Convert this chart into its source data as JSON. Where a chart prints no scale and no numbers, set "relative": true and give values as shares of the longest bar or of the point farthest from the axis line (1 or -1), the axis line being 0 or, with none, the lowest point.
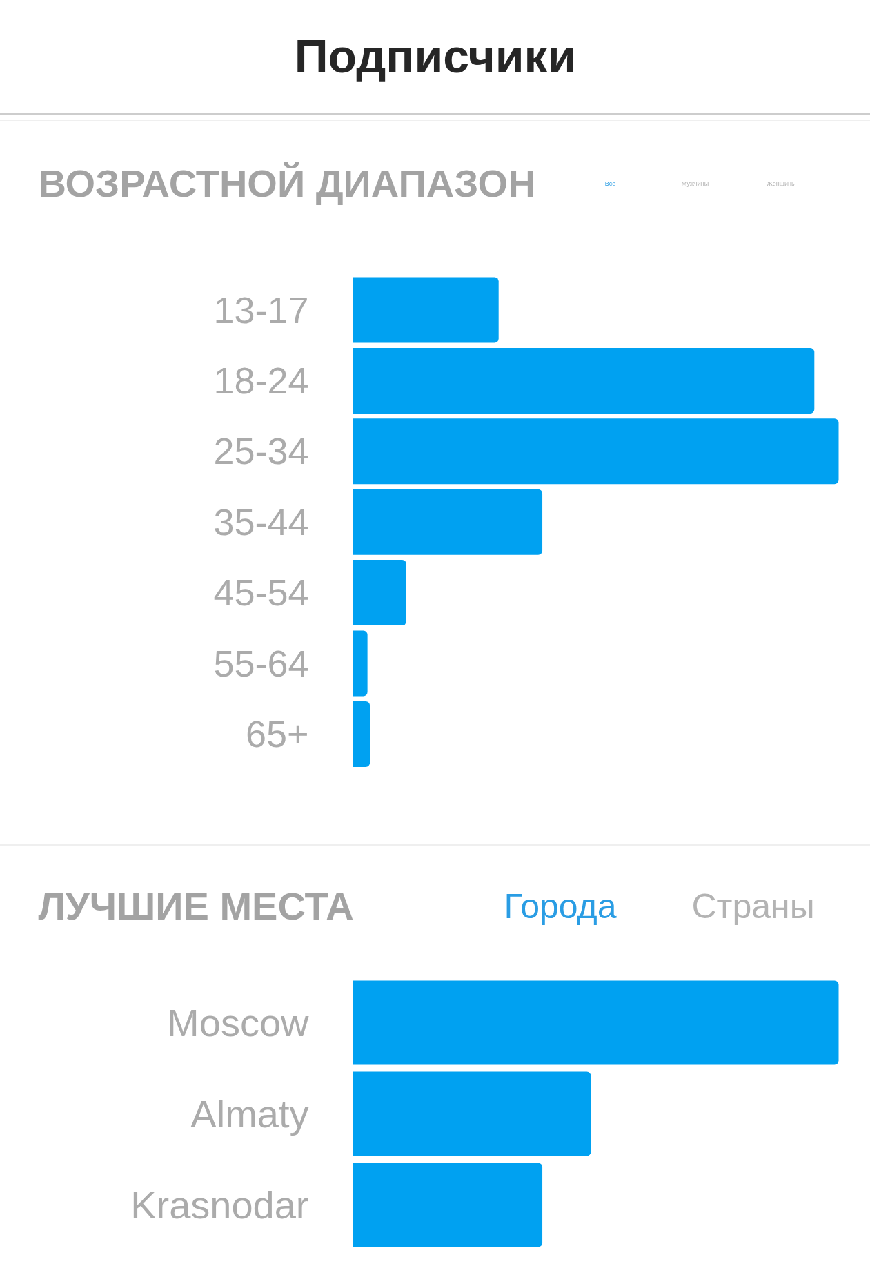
{
  "chart_data": [
    {
      "type": "bar",
      "orientation": "horizontal",
      "relative": true,
      "title": "Подписчики",
      "subtitle": "ВОЗРАСТНОЙ ДИАПАЗОН",
      "annotations": [
        "Все",
        "Мужчины",
        "Женщины"
      ],
      "categories": [
        "13-17",
        "18-24",
        "25-34",
        "35-44",
        "45-54",
        "55-64",
        "65+"
      ],
      "values": [
        0.3,
        0.95,
        1,
        0.39,
        0.11,
        0.03,
        0.035
      ],
      "color": "#00a1f1"
    },
    {
      "type": "bar",
      "orientation": "horizontal",
      "relative": true,
      "title": "ЛУЧШИЕ МЕСТА",
      "annotations": [
        "Города",
        "Страны"
      ],
      "categories": [
        "Moscow",
        "Almaty",
        "Krasnodar"
      ],
      "values": [
        1,
        0.49,
        0.39
      ],
      "color": "#00a1f1"
    }
  ]
}
